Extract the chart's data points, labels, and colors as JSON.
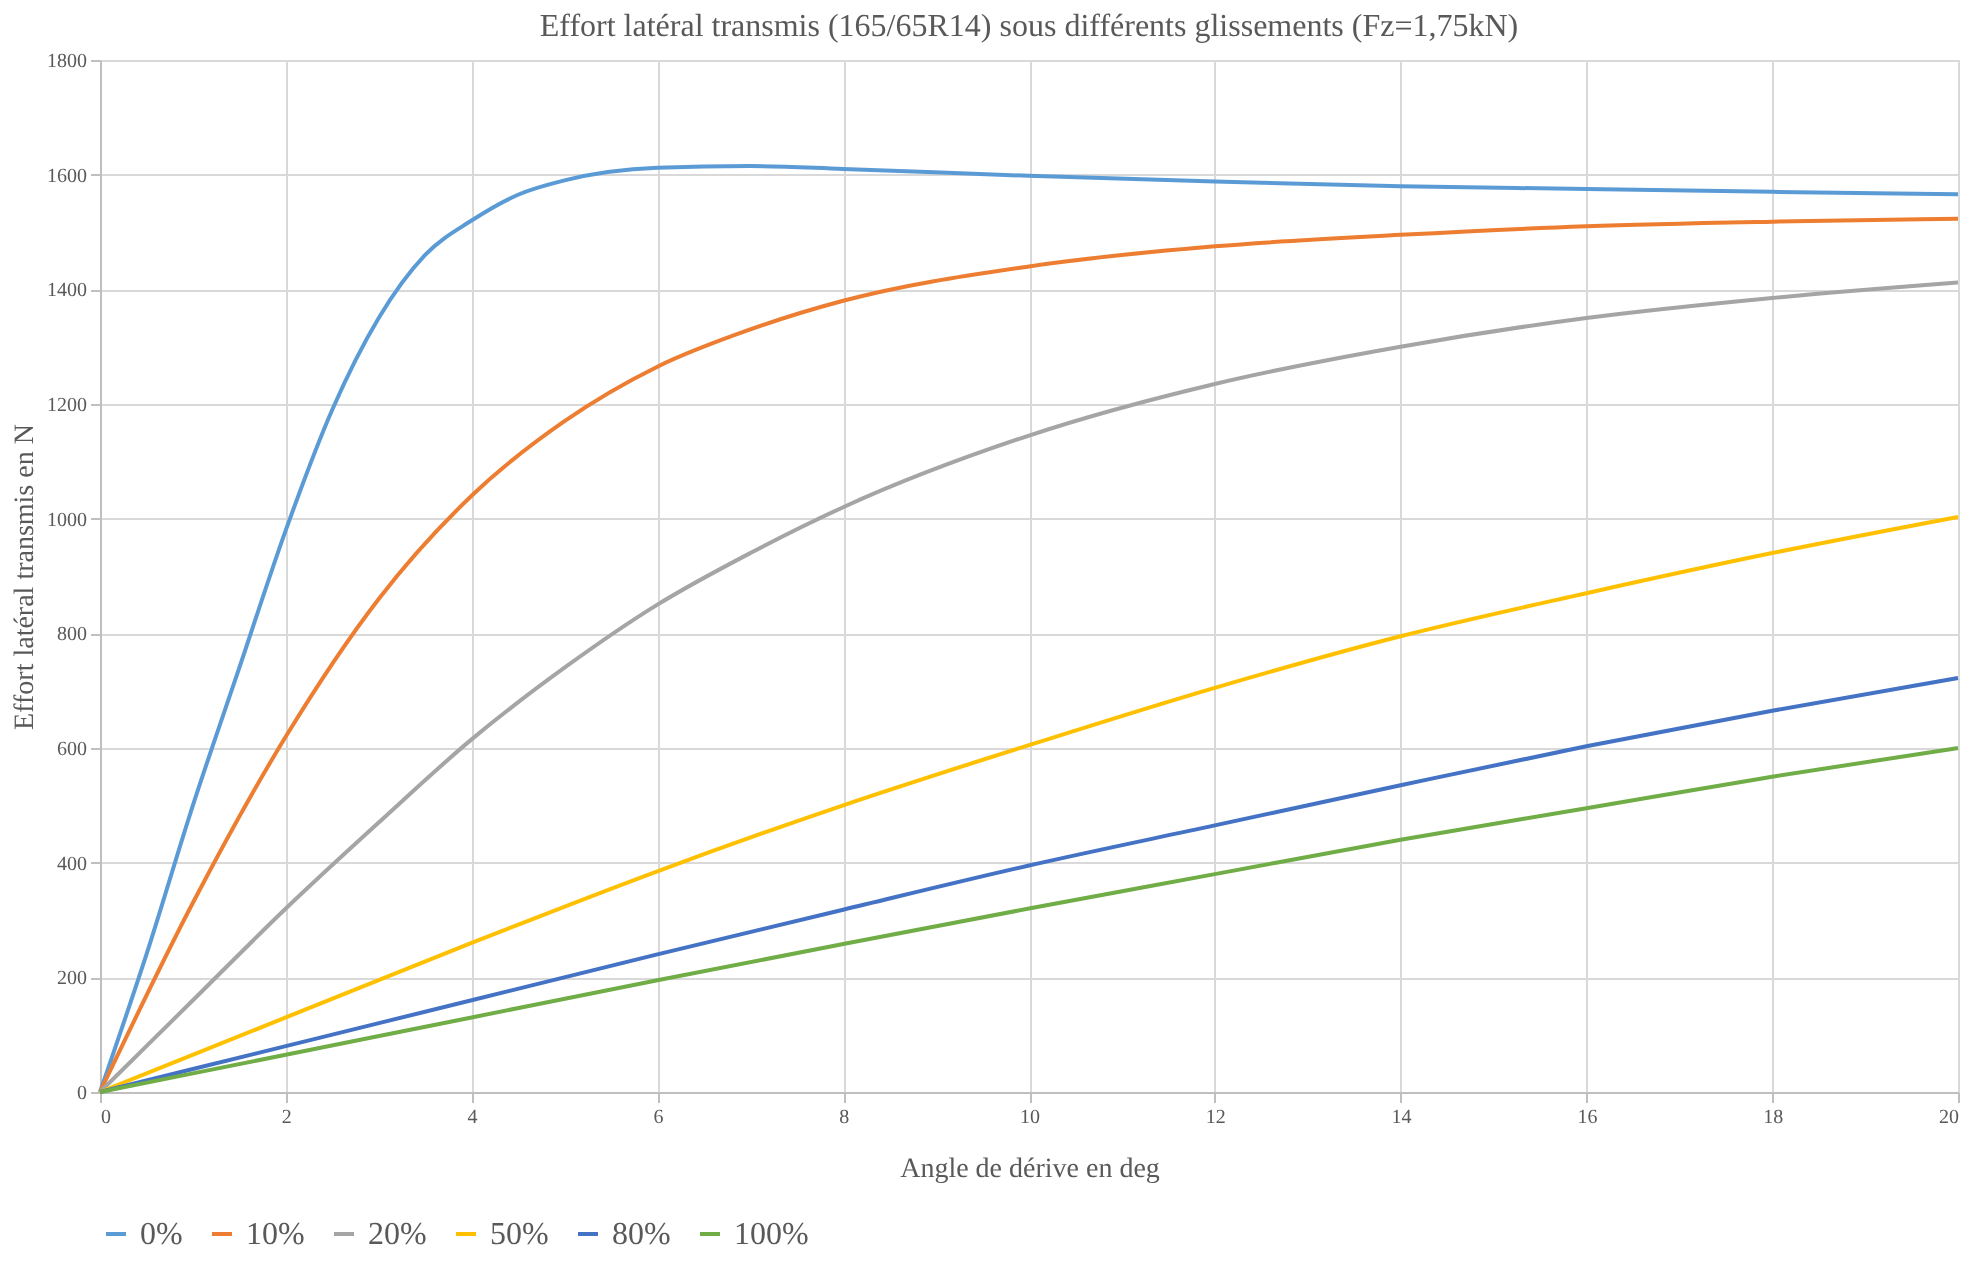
{
  "chart_data": {
    "type": "line",
    "title": "Effort latéral transmis (165/65R14) sous différents glissements (Fz=1,75kN)",
    "xlabel": "Angle de dérive en deg",
    "ylabel": "Effort latéral transmis en N",
    "xlim": [
      0,
      20
    ],
    "xticks": [
      0,
      2,
      4,
      6,
      8,
      10,
      12,
      14,
      16,
      18,
      20
    ],
    "ylim": [
      0,
      1800
    ],
    "yticks": [
      0,
      200,
      400,
      600,
      800,
      1000,
      1200,
      1400,
      1600,
      1800
    ],
    "grid": true,
    "legend": "bottom",
    "marker": "none",
    "line_style": "solid",
    "series": [
      {
        "name": "0%",
        "color": "#5b9bd5",
        "x": [
          0,
          0.5,
          1,
          1.5,
          2,
          2.5,
          3,
          3.5,
          4,
          4.5,
          5,
          6,
          7,
          8,
          10,
          12,
          14,
          16,
          18,
          20
        ],
        "values": [
          0,
          240,
          500,
          740,
          980,
          1190,
          1350,
          1460,
          1520,
          1565,
          1590,
          1612,
          1615,
          1610,
          1598,
          1588,
          1580,
          1575,
          1570,
          1566
        ]
      },
      {
        "name": "10%",
        "color": "#ed7d31",
        "x": [
          0,
          1,
          2,
          3,
          4,
          5,
          6,
          7,
          8,
          10,
          12,
          14,
          16,
          18,
          20
        ],
        "values": [
          0,
          330,
          620,
          860,
          1040,
          1170,
          1265,
          1330,
          1380,
          1440,
          1475,
          1495,
          1510,
          1518,
          1523
        ]
      },
      {
        "name": "20%",
        "color": "#a5a5a5",
        "x": [
          0,
          1,
          2,
          3,
          4,
          5,
          6,
          7,
          8,
          10,
          12,
          14,
          16,
          18,
          20
        ],
        "values": [
          0,
          160,
          320,
          470,
          615,
          740,
          850,
          940,
          1020,
          1145,
          1235,
          1300,
          1350,
          1385,
          1412
        ]
      },
      {
        "name": "50%",
        "color": "#ffc000",
        "x": [
          0,
          2,
          4,
          6,
          8,
          10,
          12,
          14,
          16,
          18,
          20
        ],
        "values": [
          0,
          130,
          260,
          385,
          500,
          605,
          705,
          795,
          870,
          940,
          1003
        ]
      },
      {
        "name": "80%",
        "color": "#4472c4",
        "x": [
          0,
          2,
          4,
          6,
          8,
          10,
          12,
          14,
          16,
          18,
          20
        ],
        "values": [
          0,
          80,
          160,
          240,
          318,
          395,
          465,
          535,
          603,
          665,
          722
        ]
      },
      {
        "name": "100%",
        "color": "#70ad47",
        "x": [
          0,
          2,
          4,
          6,
          8,
          10,
          12,
          14,
          16,
          18,
          20
        ],
        "values": [
          0,
          65,
          130,
          195,
          258,
          320,
          380,
          440,
          495,
          550,
          600
        ]
      }
    ]
  }
}
